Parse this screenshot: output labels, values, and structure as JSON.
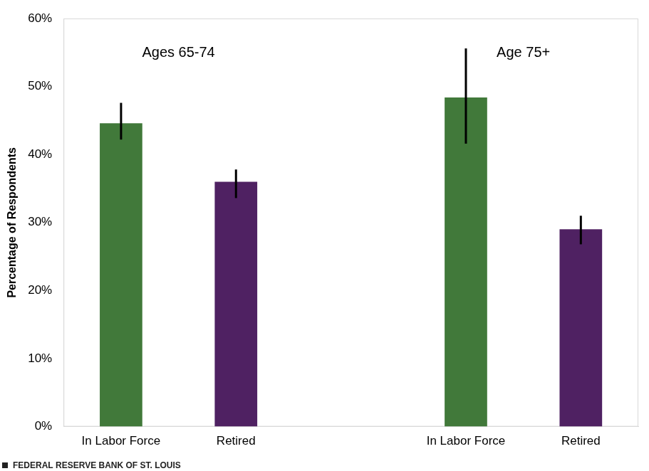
{
  "chart_data": {
    "type": "bar",
    "categories": [
      "In Labor Force",
      "Retired",
      null,
      "In Labor Force",
      "Retired"
    ],
    "values": [
      44.6,
      36.0,
      null,
      48.4,
      29.0
    ],
    "error_low": [
      42.2,
      33.6,
      null,
      41.6,
      26.8
    ],
    "error_high": [
      47.6,
      37.8,
      null,
      55.6,
      31.0
    ],
    "colors": [
      "#41793A",
      "#4F2162",
      null,
      "#41793A",
      "#4F2162"
    ],
    "y_label": "Percentage of Respondents",
    "annotations": [
      "Ages 65-74",
      "Age 75+"
    ],
    "source": "FEDERAL RESERVE BANK OF ST. LOUIS",
    "ylim": [
      0,
      60
    ],
    "yticks": [
      {
        "value": 0,
        "label": "0%"
      },
      {
        "value": 10,
        "label": "10%"
      },
      {
        "value": 20,
        "label": "20%"
      },
      {
        "value": 30,
        "label": "30%"
      },
      {
        "value": 40,
        "label": "40%"
      },
      {
        "value": 50,
        "label": "50%"
      },
      {
        "value": 60,
        "label": "60%"
      }
    ],
    "grid": false
  }
}
